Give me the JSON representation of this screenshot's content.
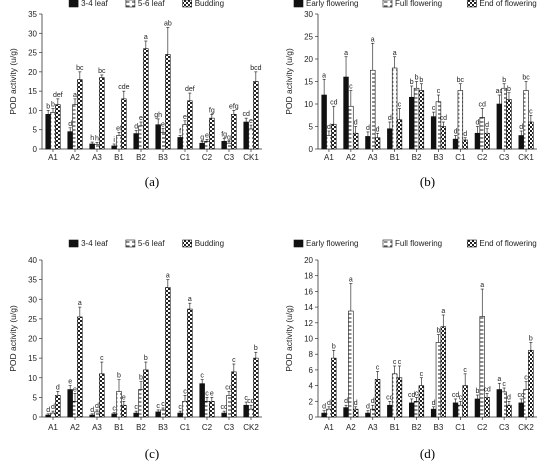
{
  "chart_data": [
    {
      "panel_label": "(a)",
      "type": "bar",
      "ylabel": "POD activity (u/g)",
      "ylim": [
        0,
        35
      ],
      "yticks": [
        0,
        5,
        10,
        15,
        20,
        25,
        30,
        35
      ],
      "categories": [
        "A1",
        "A2",
        "A3",
        "B1",
        "B2",
        "B3",
        "C1",
        "C2",
        "C3",
        "CK1"
      ],
      "legend_position": "top-center",
      "series": [
        {
          "name": "3-4 leaf",
          "pattern": "solid",
          "values": [
            9,
            4.5,
            1.3,
            0.8,
            4,
            6.3,
            3,
            1.5,
            2,
            7
          ],
          "errors": [
            1,
            1,
            0.5,
            0.5,
            0.8,
            1.5,
            0.5,
            0.5,
            0.7,
            1
          ],
          "letters": [
            "b",
            "d",
            "h",
            "i",
            "d",
            "gh",
            "f",
            "g",
            "fg",
            "cd"
          ]
        },
        {
          "name": "5-6 leaf",
          "pattern": "dashed",
          "values": [
            9.5,
            11.5,
            1.2,
            3.5,
            6,
            4.3,
            6.3,
            2,
            1.5,
            5.2
          ],
          "errors": [
            1,
            1.5,
            0.5,
            0.8,
            1,
            1,
            1,
            0.5,
            0.5,
            1
          ],
          "letters": [
            "b",
            "a",
            "h",
            "ef",
            "e",
            "e",
            "e",
            "e",
            "g",
            "e"
          ]
        },
        {
          "name": "Budding",
          "pattern": "checker",
          "values": [
            11.5,
            18,
            18.5,
            13,
            26,
            24.5,
            12.5,
            8,
            9,
            17.5
          ],
          "errors": [
            1.5,
            2,
            0.7,
            2,
            2,
            7,
            2,
            1,
            1,
            2.5
          ],
          "letters": [
            "def",
            "bc",
            "bc",
            "cde",
            "a",
            "ab",
            "def",
            "fg",
            "efg",
            "bcd"
          ]
        }
      ]
    },
    {
      "panel_label": "(b)",
      "type": "bar",
      "ylabel": "POD activity (u/g)",
      "ylim": [
        0,
        30
      ],
      "yticks": [
        0,
        5,
        10,
        15,
        20,
        25,
        30
      ],
      "categories": [
        "A1",
        "A2",
        "A3",
        "B1",
        "B2",
        "B3",
        "C1",
        "C2",
        "C3",
        "CK1"
      ],
      "legend_position": "top-center",
      "series": [
        {
          "name": "Early flowering",
          "pattern": "solid",
          "values": [
            12,
            16,
            2.8,
            4.5,
            11.5,
            7.2,
            2.2,
            3.5,
            10,
            3
          ],
          "errors": [
            3.5,
            4.5,
            1,
            1.5,
            2.5,
            1,
            0.8,
            1.5,
            2,
            1
          ],
          "letters": [
            "a",
            "a",
            "d",
            "d",
            "b",
            "c",
            "d",
            "d",
            "ac",
            "d"
          ]
        },
        {
          "name": "Full flowering",
          "pattern": "dashed",
          "values": [
            3,
            9.5,
            17.5,
            18,
            13.5,
            10.5,
            13,
            7,
            13.5,
            13
          ],
          "errors": [
            1,
            3.5,
            6,
            2.5,
            1.5,
            1.5,
            1.5,
            2,
            1,
            2
          ],
          "letters": [
            "d",
            "c",
            "a",
            "a",
            "b",
            "c",
            "bc",
            "cd",
            "b",
            "bc"
          ]
        },
        {
          "name": "End of flowering",
          "pattern": "checker",
          "values": [
            5.5,
            3.5,
            2.5,
            6.5,
            13,
            5,
            2,
            3.5,
            11,
            6
          ],
          "errors": [
            4,
            1.5,
            1,
            2.5,
            1.5,
            1,
            0.5,
            1,
            1.5,
            1.5
          ],
          "letters": [
            "cd",
            "d",
            "d",
            "c",
            "b",
            "cd",
            "d",
            "d",
            "b",
            "c"
          ]
        }
      ]
    },
    {
      "panel_label": "(c)",
      "type": "bar",
      "ylabel": "POD activity (u/g)",
      "ylim": [
        0,
        40
      ],
      "yticks": [
        0,
        5,
        10,
        15,
        20,
        25,
        30,
        35,
        40
      ],
      "categories": [
        "A1",
        "A2",
        "A3",
        "B1",
        "B2",
        "B3",
        "C1",
        "C2",
        "C3",
        "CK2"
      ],
      "legend_position": "top-center",
      "series": [
        {
          "name": "3-4 leaf",
          "pattern": "solid",
          "values": [
            0.5,
            7,
            0.5,
            0.8,
            1,
            1.3,
            1,
            8.5,
            1,
            3
          ],
          "errors": [
            0.3,
            1,
            0.3,
            0.3,
            0.5,
            0.5,
            0.5,
            1,
            0.5,
            0.8
          ],
          "letters": [
            "d",
            "e",
            "d",
            "c",
            "c",
            "c",
            "c",
            "c",
            "cd",
            "c"
          ]
        },
        {
          "name": "5-6 leaf",
          "pattern": "dashed",
          "values": [
            1,
            4,
            1.3,
            6.5,
            7,
            1.8,
            4,
            4,
            5.5,
            2
          ],
          "errors": [
            0.5,
            2,
            0.5,
            3,
            2,
            0.5,
            1.5,
            1,
            1,
            1
          ],
          "letters": [
            "d",
            "e",
            "d",
            "b",
            "b",
            "c",
            "c",
            "c",
            "cd",
            "cd"
          ]
        },
        {
          "name": "Budding",
          "pattern": "checker",
          "values": [
            5.5,
            25.5,
            11,
            3,
            12,
            33,
            27.5,
            4,
            11.5,
            15
          ],
          "errors": [
            1,
            2.5,
            3,
            1,
            2,
            2,
            1.5,
            1,
            2,
            1.5
          ],
          "letters": [
            "d",
            "a",
            "c",
            "e",
            "b",
            "a",
            "a",
            "e",
            "c",
            "b"
          ]
        }
      ]
    },
    {
      "panel_label": "(d)",
      "type": "bar",
      "ylabel": "POD activity (u/g)",
      "ylim": [
        0,
        20
      ],
      "yticks": [
        0,
        2,
        4,
        6,
        8,
        10,
        12,
        14,
        16,
        18,
        20
      ],
      "categories": [
        "A1",
        "A2",
        "A3",
        "B1",
        "B2",
        "B3",
        "C1",
        "C2",
        "C3",
        "CK2"
      ],
      "legend_position": "top-center",
      "series": [
        {
          "name": "Early flowering",
          "pattern": "solid",
          "values": [
            0.5,
            1.2,
            0.5,
            1.5,
            1.8,
            1,
            1.8,
            2.3,
            3.5,
            1.8
          ],
          "errors": [
            0.3,
            0.3,
            0.3,
            0.5,
            0.5,
            0.3,
            0.5,
            0.5,
            0.8,
            0.5
          ],
          "letters": [
            "d",
            "d",
            "d",
            "cd",
            "cd",
            "d",
            "cd",
            "b",
            "a",
            "cd"
          ]
        },
        {
          "name": "Full flowering",
          "pattern": "dashed",
          "values": [
            1,
            13.5,
            1,
            5.5,
            2,
            9.5,
            1.5,
            12.8,
            3.2,
            3.5
          ],
          "errors": [
            0.3,
            3.5,
            0.5,
            1,
            0.5,
            1,
            0.5,
            3.5,
            0.5,
            1
          ],
          "letters": [
            "d",
            "a",
            "d",
            "c",
            "c",
            "b",
            "c",
            "a",
            "c",
            "c"
          ]
        },
        {
          "name": "End of flowering",
          "pattern": "checker",
          "values": [
            7.5,
            1,
            4.8,
            5,
            4,
            11.5,
            4,
            2.5,
            1.5,
            8.5
          ],
          "errors": [
            1,
            0.3,
            1,
            1.5,
            1,
            1.5,
            1.5,
            0.5,
            0.5,
            1
          ],
          "letters": [
            "b",
            "d",
            "c",
            "c",
            "c",
            "a",
            "c",
            "cd",
            "d",
            "b"
          ]
        }
      ]
    }
  ]
}
